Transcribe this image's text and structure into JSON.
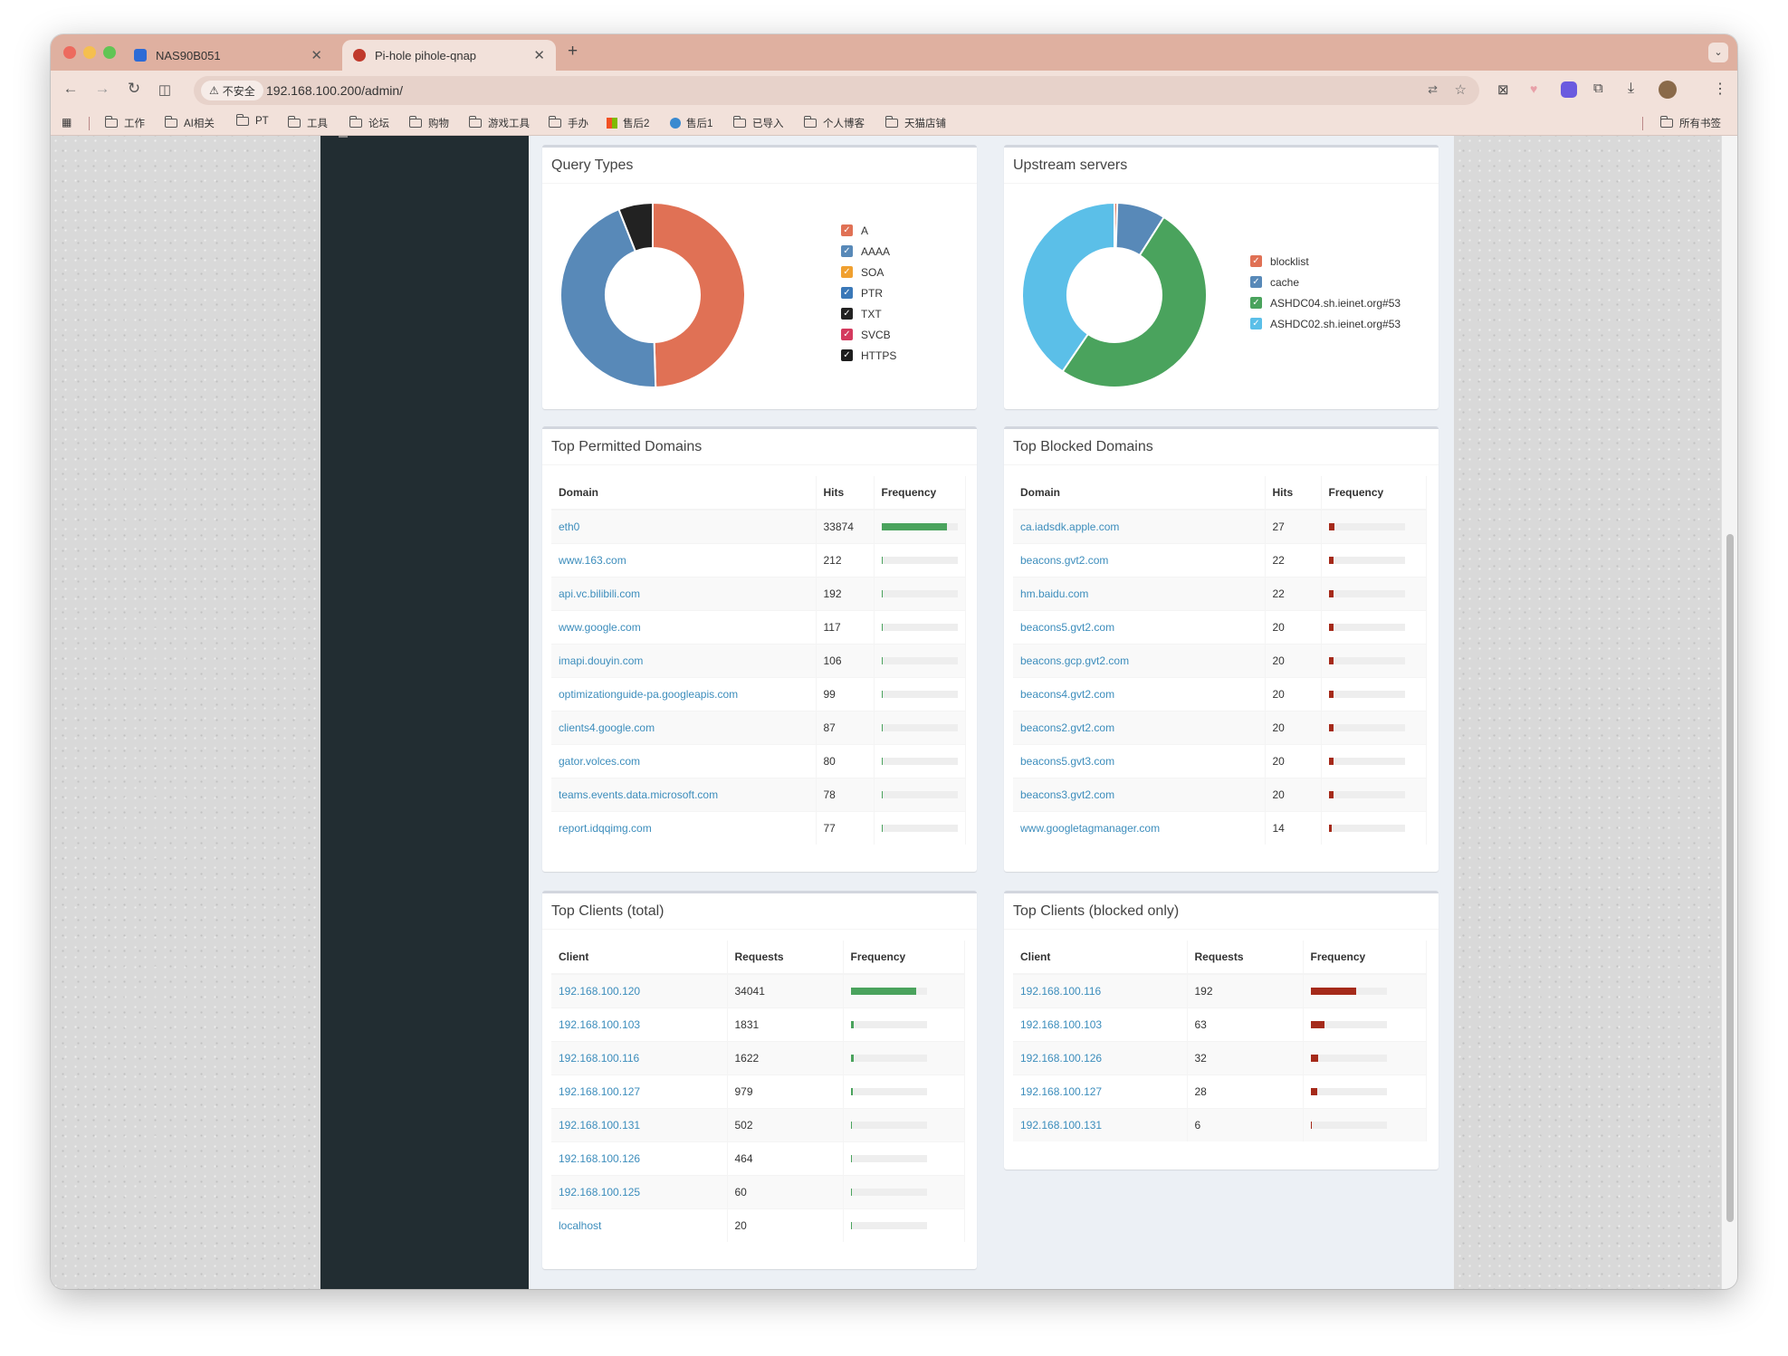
{
  "browser": {
    "tabs": [
      {
        "title": "NAS90B051",
        "active": false
      },
      {
        "title": "Pi-hole pihole-qnap",
        "active": true
      }
    ],
    "new_tab": "+",
    "security_label": "不安全",
    "url": "192.168.100.200/admin/",
    "bookmarks": [
      "工作",
      "AI相关",
      "PT",
      "工具",
      "论坛",
      "购物",
      "游戏工具",
      "手办",
      "售后2",
      "售后1",
      "已导入",
      "个人博客",
      "天猫店铺"
    ],
    "all_bookmarks": "所有书签"
  },
  "query_types": {
    "title": "Query Types",
    "legend": [
      {
        "label": "A",
        "color": "#e07155"
      },
      {
        "label": "AAAA",
        "color": "#5889b8"
      },
      {
        "label": "SOA",
        "color": "#f0a030"
      },
      {
        "label": "PTR",
        "color": "#3a78b8"
      },
      {
        "label": "TXT",
        "color": "#222222"
      },
      {
        "label": "SVCB",
        "color": "#d43a5e"
      },
      {
        "label": "HTTPS",
        "color": "#1e1e1e"
      }
    ],
    "slices": [
      {
        "label": "A",
        "value": 49.5,
        "color": "#e07155"
      },
      {
        "label": "AAAA",
        "value": 44.5,
        "color": "#5889b8"
      },
      {
        "label": "HTTPS",
        "value": 6.0,
        "color": "#222222"
      }
    ]
  },
  "upstream": {
    "title": "Upstream servers",
    "legend": [
      {
        "label": "blocklist",
        "color": "#e07155"
      },
      {
        "label": "cache",
        "color": "#5889b8"
      },
      {
        "label": "ASHDC04.sh.ieinet.org#53",
        "color": "#4aa35d"
      },
      {
        "label": "ASHDC02.sh.ieinet.org#53",
        "color": "#5bbfe8"
      }
    ],
    "slices": [
      {
        "label": "blocklist",
        "value": 0.5,
        "color": "#e07155"
      },
      {
        "label": "cache",
        "value": 8.5,
        "color": "#5889b8"
      },
      {
        "label": "ASHDC04.sh.ieinet.org#53",
        "value": 50.5,
        "color": "#4aa35d"
      },
      {
        "label": "ASHDC02.sh.ieinet.org#53",
        "value": 40.5,
        "color": "#5bbfe8"
      }
    ]
  },
  "permitted": {
    "title": "Top Permitted Domains",
    "columns": [
      "Domain",
      "Hits",
      "Frequency"
    ],
    "bar_color": "#4aa35d",
    "rows": [
      {
        "name": "eth0",
        "count": "33874",
        "freq": 0.86
      },
      {
        "name": "www.163.com",
        "count": "212",
        "freq": 0.006
      },
      {
        "name": "api.vc.bilibili.com",
        "count": "192",
        "freq": 0.006
      },
      {
        "name": "www.google.com",
        "count": "117",
        "freq": 0.003
      },
      {
        "name": "imapi.douyin.com",
        "count": "106",
        "freq": 0.003
      },
      {
        "name": "optimizationguide-pa.googleapis.com",
        "count": "99",
        "freq": 0.003
      },
      {
        "name": "clients4.google.com",
        "count": "87",
        "freq": 0.002
      },
      {
        "name": "gator.volces.com",
        "count": "80",
        "freq": 0.002
      },
      {
        "name": "teams.events.data.microsoft.com",
        "count": "78",
        "freq": 0.002
      },
      {
        "name": "report.idqqimg.com",
        "count": "77",
        "freq": 0.002
      }
    ]
  },
  "blocked": {
    "title": "Top Blocked Domains",
    "columns": [
      "Domain",
      "Hits",
      "Frequency"
    ],
    "bar_color": "#a52a1a",
    "rows": [
      {
        "name": "ca.iadsdk.apple.com",
        "count": "27",
        "freq": 0.08
      },
      {
        "name": "beacons.gvt2.com",
        "count": "22",
        "freq": 0.07
      },
      {
        "name": "hm.baidu.com",
        "count": "22",
        "freq": 0.07
      },
      {
        "name": "beacons5.gvt2.com",
        "count": "20",
        "freq": 0.06
      },
      {
        "name": "beacons.gcp.gvt2.com",
        "count": "20",
        "freq": 0.06
      },
      {
        "name": "beacons4.gvt2.com",
        "count": "20",
        "freq": 0.06
      },
      {
        "name": "beacons2.gvt2.com",
        "count": "20",
        "freq": 0.06
      },
      {
        "name": "beacons5.gvt3.com",
        "count": "20",
        "freq": 0.06
      },
      {
        "name": "beacons3.gvt2.com",
        "count": "20",
        "freq": 0.06
      },
      {
        "name": "www.googletagmanager.com",
        "count": "14",
        "freq": 0.04
      }
    ]
  },
  "clients_total": {
    "title": "Top Clients (total)",
    "columns": [
      "Client",
      "Requests",
      "Frequency"
    ],
    "bar_color": "#4aa35d",
    "rows": [
      {
        "name": "192.168.100.120",
        "count": "34041",
        "freq": 0.86
      },
      {
        "name": "192.168.100.103",
        "count": "1831",
        "freq": 0.046
      },
      {
        "name": "192.168.100.116",
        "count": "1622",
        "freq": 0.041
      },
      {
        "name": "192.168.100.127",
        "count": "979",
        "freq": 0.025
      },
      {
        "name": "192.168.100.131",
        "count": "502",
        "freq": 0.013
      },
      {
        "name": "192.168.100.126",
        "count": "464",
        "freq": 0.012
      },
      {
        "name": "192.168.100.125",
        "count": "60",
        "freq": 0.002
      },
      {
        "name": "localhost",
        "count": "20",
        "freq": 0.0005
      }
    ]
  },
  "clients_blocked": {
    "title": "Top Clients (blocked only)",
    "columns": [
      "Client",
      "Requests",
      "Frequency"
    ],
    "bar_color": "#a52a1a",
    "rows": [
      {
        "name": "192.168.100.116",
        "count": "192",
        "freq": 0.6
      },
      {
        "name": "192.168.100.103",
        "count": "63",
        "freq": 0.19
      },
      {
        "name": "192.168.100.126",
        "count": "32",
        "freq": 0.1
      },
      {
        "name": "192.168.100.127",
        "count": "28",
        "freq": 0.09
      },
      {
        "name": "192.168.100.131",
        "count": "6",
        "freq": 0.02
      }
    ]
  }
}
